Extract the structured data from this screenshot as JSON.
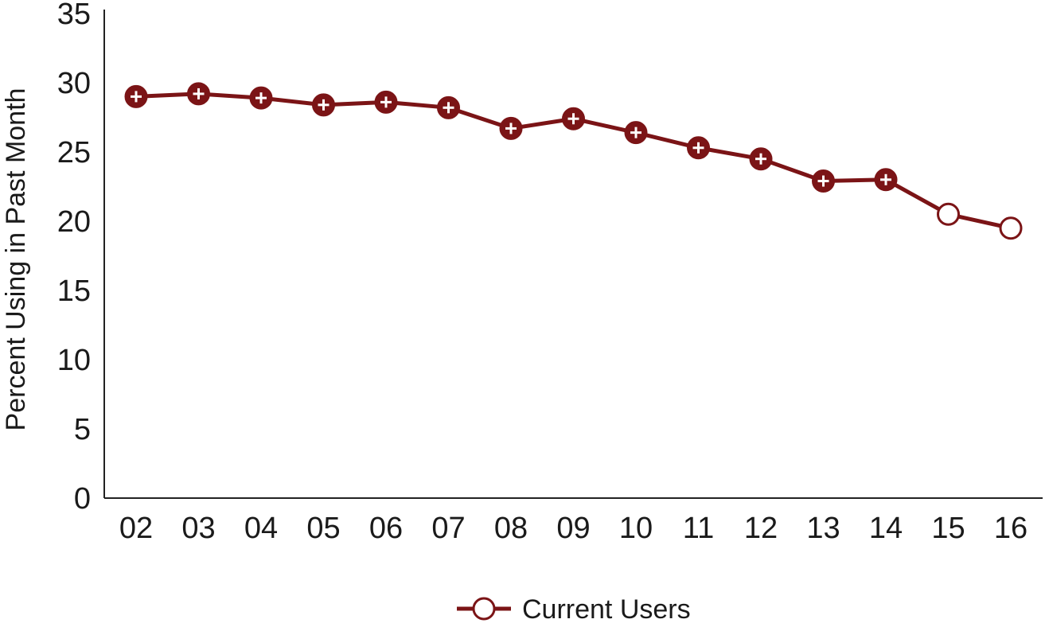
{
  "chart_data": {
    "type": "line",
    "title": "",
    "xlabel": "",
    "ylabel": "Percent Using in Past Month",
    "categories": [
      "02",
      "03",
      "04",
      "05",
      "06",
      "07",
      "08",
      "09",
      "10",
      "11",
      "12",
      "13",
      "14",
      "15",
      "16"
    ],
    "ylim": [
      0,
      35
    ],
    "yticks": [
      0,
      5,
      10,
      15,
      20,
      25,
      30,
      35
    ],
    "grid": false,
    "legend_position": "bottom",
    "series": [
      {
        "name": "Current Users",
        "color": "#7b1416",
        "values": [
          29.0,
          29.2,
          28.9,
          28.4,
          28.6,
          28.2,
          26.7,
          27.4,
          26.4,
          25.3,
          24.5,
          22.9,
          23.0,
          20.5,
          19.5
        ],
        "significant_difference": [
          true,
          true,
          true,
          true,
          true,
          true,
          true,
          true,
          true,
          true,
          true,
          true,
          true,
          false,
          false
        ]
      }
    ]
  }
}
